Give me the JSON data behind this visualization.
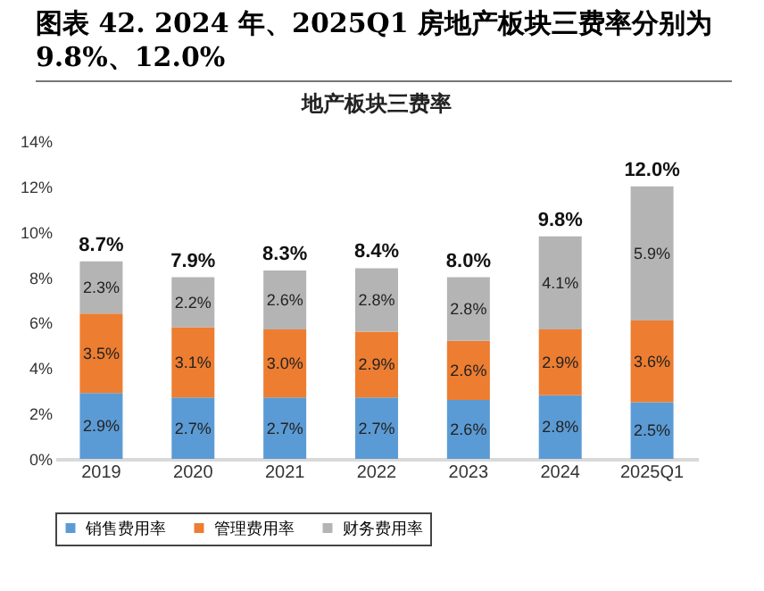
{
  "chart_data": {
    "type": "bar",
    "title": "图表 42. 2024 年、2025Q1 房地产板块三费率分别为 9.8%、12.0%",
    "subtitle": "地产板块三费率",
    "categories": [
      "2019",
      "2020",
      "2021",
      "2022",
      "2023",
      "2024",
      "2025Q1"
    ],
    "stacked": true,
    "series": [
      {
        "name": "销售费用率",
        "color": "#5b9bd5",
        "values": [
          2.9,
          2.7,
          2.7,
          2.7,
          2.6,
          2.8,
          2.5
        ],
        "value_labels": [
          "2.9%",
          "2.7%",
          "2.7%",
          "2.7%",
          "2.6%",
          "2.8%",
          "2.5%"
        ]
      },
      {
        "name": "管理费用率",
        "color": "#ed7d31",
        "values": [
          3.5,
          3.1,
          3.0,
          2.9,
          2.6,
          2.9,
          3.6
        ],
        "value_labels": [
          "3.5%",
          "3.1%",
          "3.0%",
          "2.9%",
          "2.6%",
          "2.9%",
          "3.6%"
        ]
      },
      {
        "name": "财务费用率",
        "color": "#b4b4b4",
        "values": [
          2.3,
          2.2,
          2.6,
          2.8,
          2.8,
          4.1,
          5.9
        ],
        "value_labels": [
          "2.3%",
          "2.2%",
          "2.6%",
          "2.8%",
          "2.8%",
          "4.1%",
          "5.9%"
        ]
      }
    ],
    "totals": [
      "8.7%",
      "7.9%",
      "8.3%",
      "8.4%",
      "8.0%",
      "9.8%",
      "12.0%"
    ],
    "ylim": [
      0,
      14
    ],
    "yticks": [
      {
        "value": 0,
        "label": "0%"
      },
      {
        "value": 2,
        "label": "2%"
      },
      {
        "value": 4,
        "label": "4%"
      },
      {
        "value": 6,
        "label": "6%"
      },
      {
        "value": 8,
        "label": "8%"
      },
      {
        "value": 10,
        "label": "10%"
      },
      {
        "value": 12,
        "label": "12%"
      },
      {
        "value": 14,
        "label": "14%"
      }
    ],
    "grid": false,
    "legend": "bottom"
  }
}
